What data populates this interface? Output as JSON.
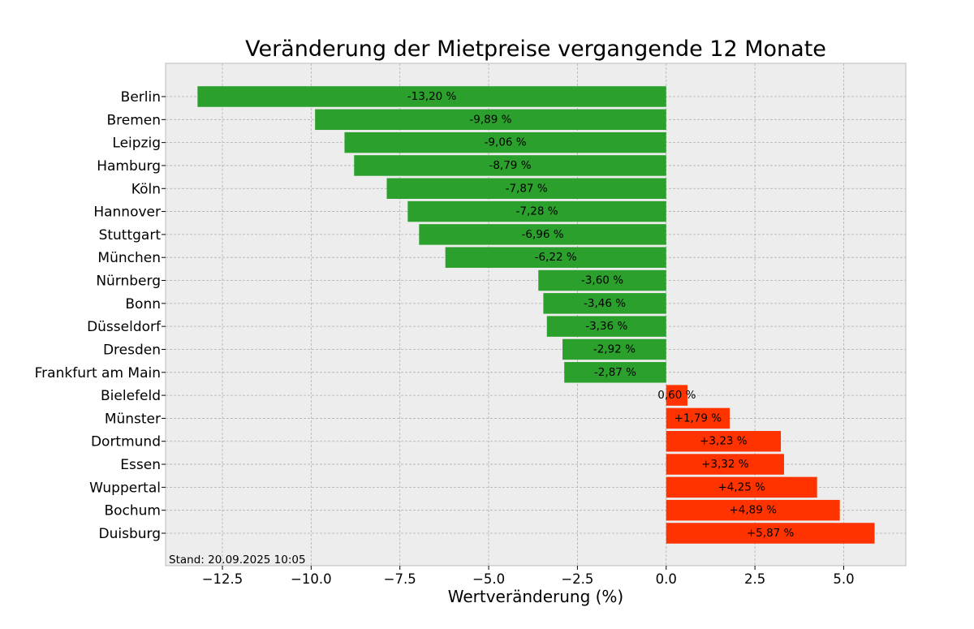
{
  "chart_data": {
    "type": "bar",
    "orientation": "horizontal",
    "title": "Veränderung der Mietpreise vergangende 12 Monate",
    "xlabel": "Wertveränderung (%)",
    "ylabel": "",
    "xlim": [
      -14.1,
      6.75
    ],
    "xticks": [
      -12.5,
      -10.0,
      -7.5,
      -5.0,
      -2.5,
      0.0,
      2.5,
      5.0
    ],
    "xtick_labels": [
      "−12.5",
      "−10.0",
      "−7.5",
      "−5.0",
      "−2.5",
      "0.0",
      "2.5",
      "5.0"
    ],
    "grid": true,
    "categories": [
      "Berlin",
      "Bremen",
      "Leipzig",
      "Hamburg",
      "Köln",
      "Hannover",
      "Stuttgart",
      "München",
      "Nürnberg",
      "Bonn",
      "Düsseldorf",
      "Dresden",
      "Frankfurt am Main",
      "Bielefeld",
      "Münster",
      "Dortmund",
      "Essen",
      "Wuppertal",
      "Bochum",
      "Duisburg"
    ],
    "values": [
      -13.2,
      -9.89,
      -9.06,
      -8.79,
      -7.87,
      -7.28,
      -6.96,
      -6.22,
      -3.6,
      -3.46,
      -3.36,
      -2.92,
      -2.87,
      0.6,
      1.79,
      3.23,
      3.32,
      4.25,
      4.89,
      5.87
    ],
    "data_labels": [
      "-13,20 %",
      "-9,89 %",
      "-9,06 %",
      "-8,79 %",
      "-7,87 %",
      "-7,28 %",
      "-6,96 %",
      "-6,22 %",
      "-3,60 %",
      "-3,46 %",
      "-3,36 %",
      "-2,92 %",
      "-2,87 %",
      "0,60 %",
      "+1,79 %",
      "+3,23 %",
      "+3,32 %",
      "+4,25 %",
      "+4,89 %",
      "+5,87 %"
    ],
    "colors": {
      "negative": "#2ca02c",
      "positive": "#ff3300"
    },
    "annotation": "Stand: 20.09.2025 10:05"
  }
}
